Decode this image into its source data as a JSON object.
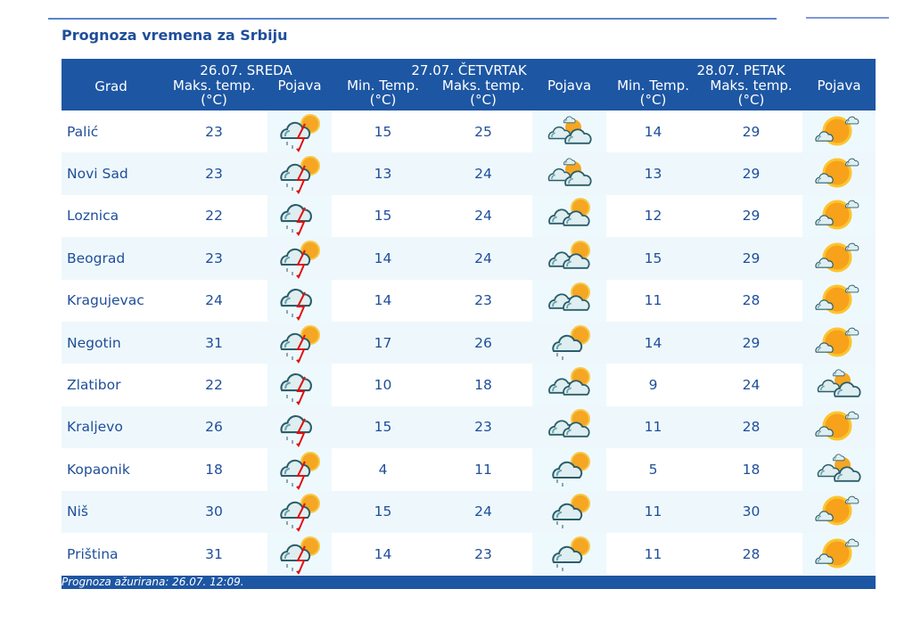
{
  "title": "Prognoza vremena za Srbiju",
  "header": {
    "city": "Grad",
    "days": [
      "26.07. SREDA",
      "27.07. ČETVRTAK",
      "28.07. PETAK"
    ],
    "max_temp": "Maks. temp.",
    "min_temp": "Min. Temp.",
    "unit": "(°C)",
    "phenomenon": "Pojava"
  },
  "rows": [
    {
      "city": "Palić",
      "d1max": "23",
      "d1icon": "storm-sun",
      "d2min": "15",
      "d2max": "25",
      "d2icon": "partly-cloudy",
      "d3min": "14",
      "d3max": "29",
      "d3icon": "sunny-cloud"
    },
    {
      "city": "Novi Sad",
      "d1max": "23",
      "d1icon": "storm-sun",
      "d2min": "13",
      "d2max": "24",
      "d2icon": "partly-cloudy",
      "d3min": "13",
      "d3max": "29",
      "d3icon": "sunny-cloud"
    },
    {
      "city": "Loznica",
      "d1max": "22",
      "d1icon": "storm",
      "d2min": "15",
      "d2max": "24",
      "d2icon": "cloudy-sun",
      "d3min": "12",
      "d3max": "29",
      "d3icon": "sunny-cloud"
    },
    {
      "city": "Beograd",
      "d1max": "23",
      "d1icon": "storm-sun",
      "d2min": "14",
      "d2max": "24",
      "d2icon": "cloudy-sun",
      "d3min": "15",
      "d3max": "29",
      "d3icon": "sunny-cloud"
    },
    {
      "city": "Kragujevac",
      "d1max": "24",
      "d1icon": "storm",
      "d2min": "14",
      "d2max": "23",
      "d2icon": "cloudy-sun",
      "d3min": "11",
      "d3max": "28",
      "d3icon": "sunny-cloud"
    },
    {
      "city": "Negotin",
      "d1max": "31",
      "d1icon": "storm-sun",
      "d2min": "17",
      "d2max": "26",
      "d2icon": "showers-sun",
      "d3min": "14",
      "d3max": "29",
      "d3icon": "sunny-cloud"
    },
    {
      "city": "Zlatibor",
      "d1max": "22",
      "d1icon": "storm",
      "d2min": "10",
      "d2max": "18",
      "d2icon": "cloudy-sun",
      "d3min": "9",
      "d3max": "24",
      "d3icon": "partly-cloudy"
    },
    {
      "city": "Kraljevo",
      "d1max": "26",
      "d1icon": "storm",
      "d2min": "15",
      "d2max": "23",
      "d2icon": "cloudy-sun",
      "d3min": "11",
      "d3max": "28",
      "d3icon": "sunny-cloud"
    },
    {
      "city": "Kopaonik",
      "d1max": "18",
      "d1icon": "storm-sun",
      "d2min": "4",
      "d2max": "11",
      "d2icon": "showers-sun",
      "d3min": "5",
      "d3max": "18",
      "d3icon": "partly-cloudy"
    },
    {
      "city": "Niš",
      "d1max": "30",
      "d1icon": "storm-sun",
      "d2min": "15",
      "d2max": "24",
      "d2icon": "showers-sun",
      "d3min": "11",
      "d3max": "30",
      "d3icon": "sunny-cloud"
    },
    {
      "city": "Priština",
      "d1max": "31",
      "d1icon": "storm-sun",
      "d2min": "14",
      "d2max": "23",
      "d2icon": "showers-sun",
      "d3min": "11",
      "d3max": "28",
      "d3icon": "sunny-cloud"
    }
  ],
  "footer": "Prognoza ažurirana:  26.07. 12:09.",
  "colors": {
    "header": "#1d56a3",
    "text": "#1f4e9a",
    "row_alt": "#eef8fc"
  }
}
